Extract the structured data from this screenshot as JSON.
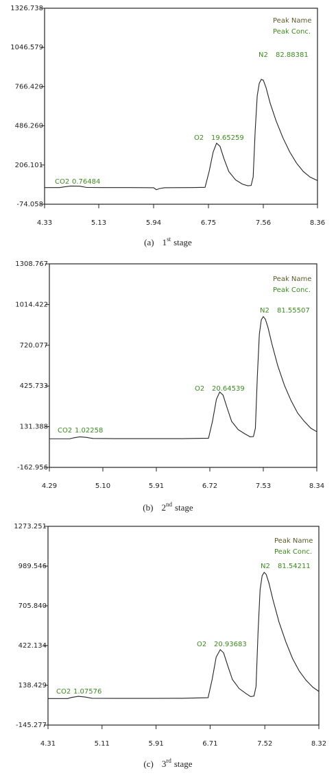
{
  "chart_data": [
    {
      "type": "line",
      "caption": {
        "label": "(a)",
        "number": "1",
        "suffix": "st",
        "text": "stage"
      },
      "legend_labels": [
        "Peak Name",
        "Peak Conc."
      ],
      "peaks": [
        {
          "name": "CO2",
          "conc": 0.76484
        },
        {
          "name": "O2",
          "conc": 19.65259
        },
        {
          "name": "N2",
          "conc": 82.88381
        }
      ],
      "xlim": [
        4.33,
        8.36
      ],
      "xticks": [
        4.33,
        5.13,
        5.94,
        6.75,
        7.56,
        8.36
      ],
      "ylim": [
        -74.058,
        1326.738
      ],
      "yticks": [
        -74.058,
        206.101,
        {
          "value": 486.26,
          "label": "486.260"
        },
        {
          "value": 766.42,
          "label": "766.420"
        },
        1046.579,
        1326.738
      ],
      "x": [
        4.33,
        4.55,
        4.62,
        4.72,
        4.85,
        4.95,
        5.2,
        5.6,
        5.94,
        5.98,
        6.03,
        6.1,
        6.5,
        6.7,
        6.76,
        6.82,
        6.87,
        6.92,
        6.98,
        7.05,
        7.15,
        7.25,
        7.33,
        7.38,
        7.41,
        7.44,
        7.47,
        7.5,
        7.53,
        7.56,
        7.6,
        7.66,
        7.75,
        7.85,
        7.95,
        8.05,
        8.15,
        8.25,
        8.36
      ],
      "series": [
        {
          "color": "#222222",
          "values": [
            45,
            45,
            50,
            56,
            55,
            46,
            45,
            45,
            44,
            30,
            38,
            44,
            45,
            47,
            160,
            300,
            362,
            340,
            250,
            160,
            100,
            70,
            58,
            60,
            120,
            450,
            700,
            790,
            818,
            812,
            760,
            650,
            520,
            400,
            300,
            220,
            160,
            120,
            95
          ]
        }
      ]
    },
    {
      "type": "line",
      "caption": {
        "label": "(b)",
        "number": "2",
        "suffix": "nd",
        "text": "stage"
      },
      "legend_labels": [
        "Peak Name",
        "Peak Conc."
      ],
      "peaks": [
        {
          "name": "CO2",
          "conc": 1.02258
        },
        {
          "name": "O2",
          "conc": 20.64539
        },
        {
          "name": "N2",
          "conc": 81.55507
        }
      ],
      "xlim": [
        4.29,
        8.34
      ],
      "xticks": [
        4.29,
        {
          "value": 5.1,
          "label": "5.10"
        },
        5.91,
        6.72,
        7.53,
        8.34
      ],
      "ylim": [
        -162.956,
        1308.767
      ],
      "yticks": [
        -162.956,
        131.388,
        425.733,
        720.077,
        1014.422,
        1308.767
      ],
      "x": [
        4.29,
        4.6,
        4.65,
        4.75,
        4.85,
        4.95,
        5.3,
        5.9,
        6.3,
        6.7,
        6.76,
        6.82,
        6.87,
        6.92,
        6.98,
        7.05,
        7.15,
        7.25,
        7.33,
        7.38,
        7.41,
        7.44,
        7.47,
        7.5,
        7.53,
        7.56,
        7.6,
        7.66,
        7.75,
        7.85,
        7.95,
        8.05,
        8.15,
        8.25,
        8.34
      ],
      "series": [
        {
          "color": "#222222",
          "values": [
            44,
            44,
            50,
            58,
            54,
            46,
            45,
            45,
            45,
            48,
            170,
            330,
            382,
            360,
            270,
            170,
            110,
            80,
            58,
            60,
            120,
            500,
            800,
            905,
            927,
            910,
            850,
            730,
            570,
            430,
            320,
            230,
            170,
            120,
            95
          ]
        }
      ]
    },
    {
      "type": "line",
      "caption": {
        "label": "(c)",
        "number": "3",
        "suffix": "rd",
        "text": "stage"
      },
      "legend_labels": [
        "Peak Name",
        "Peak Conc."
      ],
      "peaks": [
        {
          "name": "CO2",
          "conc": 1.07576
        },
        {
          "name": "O2",
          "conc": 20.93683
        },
        {
          "name": "N2",
          "conc": 81.54211
        }
      ],
      "xlim": [
        4.31,
        8.32
      ],
      "xticks": [
        4.31,
        5.11,
        5.91,
        6.71,
        7.52,
        8.32
      ],
      "ylim": [
        -145.277,
        1273.251
      ],
      "yticks": [
        -145.277,
        138.429,
        422.134,
        {
          "value": 705.84,
          "label": "705.840"
        },
        989.546,
        1273.251
      ],
      "x": [
        4.31,
        4.6,
        4.66,
        4.76,
        4.86,
        4.96,
        5.3,
        5.9,
        6.3,
        6.68,
        6.74,
        6.8,
        6.86,
        6.91,
        6.97,
        7.04,
        7.14,
        7.24,
        7.31,
        7.36,
        7.39,
        7.42,
        7.45,
        7.48,
        7.51,
        7.54,
        7.58,
        7.64,
        7.73,
        7.83,
        7.93,
        8.03,
        8.13,
        8.23,
        8.32
      ],
      "series": [
        {
          "color": "#222222",
          "values": [
            44,
            44,
            52,
            60,
            55,
            46,
            45,
            45,
            46,
            50,
            180,
            340,
            393,
            370,
            280,
            180,
            115,
            80,
            58,
            62,
            130,
            520,
            820,
            920,
            945,
            930,
            870,
            750,
            590,
            450,
            330,
            240,
            175,
            125,
            95
          ]
        }
      ]
    }
  ]
}
